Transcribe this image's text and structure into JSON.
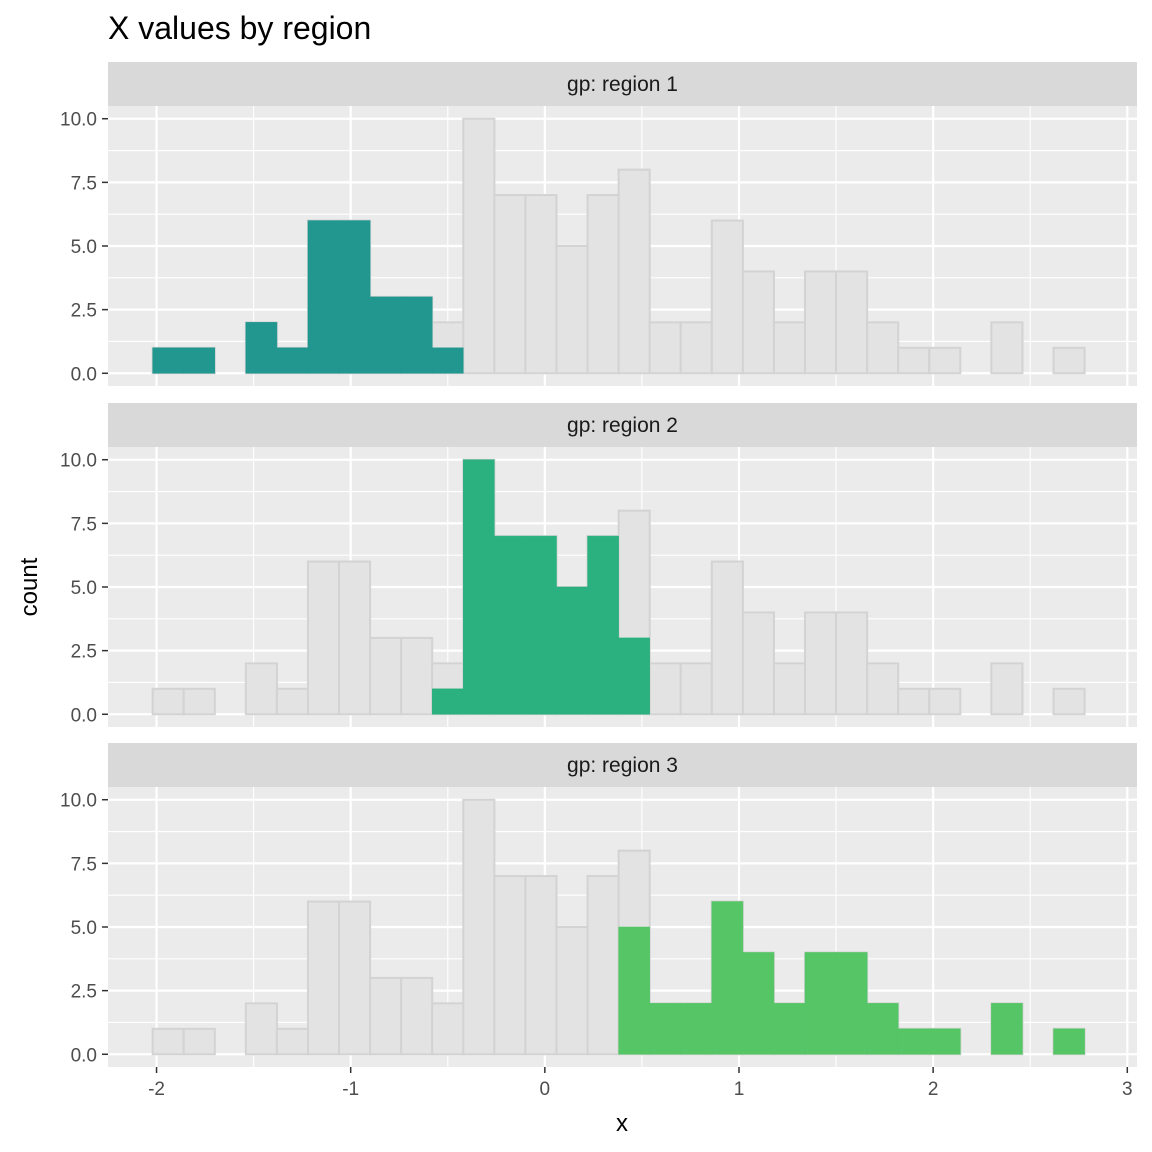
{
  "chart_data": {
    "type": "bar",
    "title": "X values by region",
    "xlabel": "x",
    "ylabel": "count",
    "facet_prefix": "gp: ",
    "bin_width": 0.16,
    "first_bin_left": -2.02,
    "xlim": [
      -2.25,
      3.05
    ],
    "ylim": [
      -0.5,
      10.5
    ],
    "x_ticks": [
      -2,
      -1,
      0,
      1,
      2,
      3
    ],
    "x_tick_labels": [
      "-2",
      "-1",
      "0",
      "1",
      "2",
      "3"
    ],
    "y_ticks": [
      0,
      2.5,
      5,
      7.5,
      10
    ],
    "y_tick_labels": [
      "0.0",
      "2.5",
      "5.0",
      "7.5",
      "10.0"
    ],
    "grid": true,
    "background_counts": [
      1,
      1,
      0,
      2,
      1,
      6,
      6,
      3,
      3,
      2,
      10,
      7,
      7,
      5,
      7,
      8,
      2,
      2,
      6,
      4,
      2,
      4,
      4,
      2,
      1,
      1,
      0,
      2,
      0,
      1
    ],
    "colors": {
      "background_bar_fill": "#e3e3e3",
      "background_bar_stroke": "#d3d3d3",
      "panel_background": "#ebebeb",
      "grid": "#ffffff",
      "strip_background": "#d9d9d9"
    },
    "facets": [
      {
        "name": "region 1",
        "strip_label": "gp: region 1",
        "color": "#21978f",
        "counts": [
          1,
          1,
          0,
          2,
          1,
          6,
          6,
          3,
          3,
          1,
          0,
          0,
          0,
          0,
          0,
          0,
          0,
          0,
          0,
          0,
          0,
          0,
          0,
          0,
          0,
          0,
          0,
          0,
          0,
          0
        ]
      },
      {
        "name": "region 2",
        "strip_label": "gp: region 2",
        "color": "#2bb07f",
        "counts": [
          0,
          0,
          0,
          0,
          0,
          0,
          0,
          0,
          0,
          1,
          10,
          7,
          7,
          5,
          7,
          3,
          0,
          0,
          0,
          0,
          0,
          0,
          0,
          0,
          0,
          0,
          0,
          0,
          0,
          0
        ]
      },
      {
        "name": "region 3",
        "strip_label": "gp: region 3",
        "color": "#55c566",
        "counts": [
          0,
          0,
          0,
          0,
          0,
          0,
          0,
          0,
          0,
          0,
          0,
          0,
          0,
          0,
          0,
          5,
          2,
          2,
          6,
          4,
          2,
          4,
          4,
          2,
          1,
          1,
          0,
          2,
          0,
          1
        ]
      }
    ]
  }
}
